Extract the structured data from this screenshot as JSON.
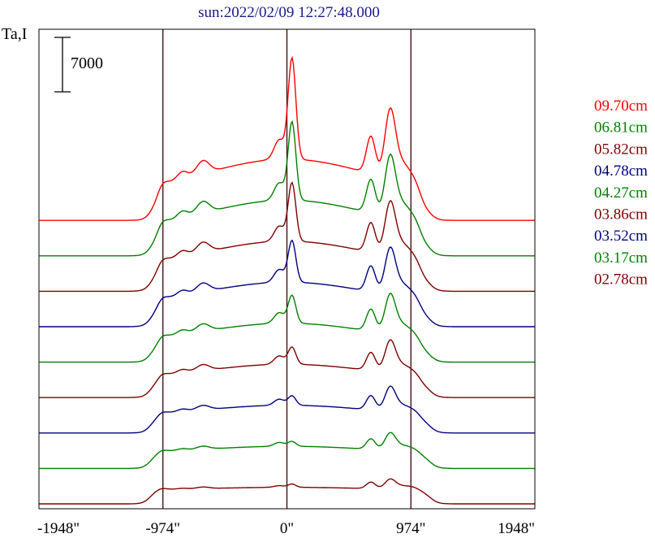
{
  "chart_data": {
    "type": "line",
    "title": "sun:2022/02/09 12:27:48.000",
    "ylabel": "Ta,I",
    "scale_bar_label": "7000",
    "scale_bar_value": 7000,
    "xlim": [
      -1948,
      1948
    ],
    "x_ticks": [
      -1948,
      -974,
      0,
      974,
      1948
    ],
    "x_tick_labels": [
      "-1948\"",
      "-974\"",
      "0\"",
      "974\"",
      "1948\""
    ],
    "vlines": [
      -974,
      0,
      974
    ],
    "grid": false,
    "legend_position": "right",
    "series": [
      {
        "name": "09.70cm",
        "color": "#ff0000",
        "baseline": 9
      },
      {
        "name": "06.81cm",
        "color": "#008000",
        "baseline": 8
      },
      {
        "name": "05.82cm",
        "color": "#800000",
        "baseline": 7
      },
      {
        "name": "04.78cm",
        "color": "#000080",
        "baseline": 6
      },
      {
        "name": "04.27cm",
        "color": "#008000",
        "baseline": 5
      },
      {
        "name": "03.86cm",
        "color": "#800000",
        "baseline": 4
      },
      {
        "name": "03.52cm",
        "color": "#000080",
        "baseline": 3
      },
      {
        "name": "03.17cm",
        "color": "#008000",
        "baseline": 2
      },
      {
        "name": "02.78cm",
        "color": "#800000",
        "baseline": 1
      }
    ]
  }
}
